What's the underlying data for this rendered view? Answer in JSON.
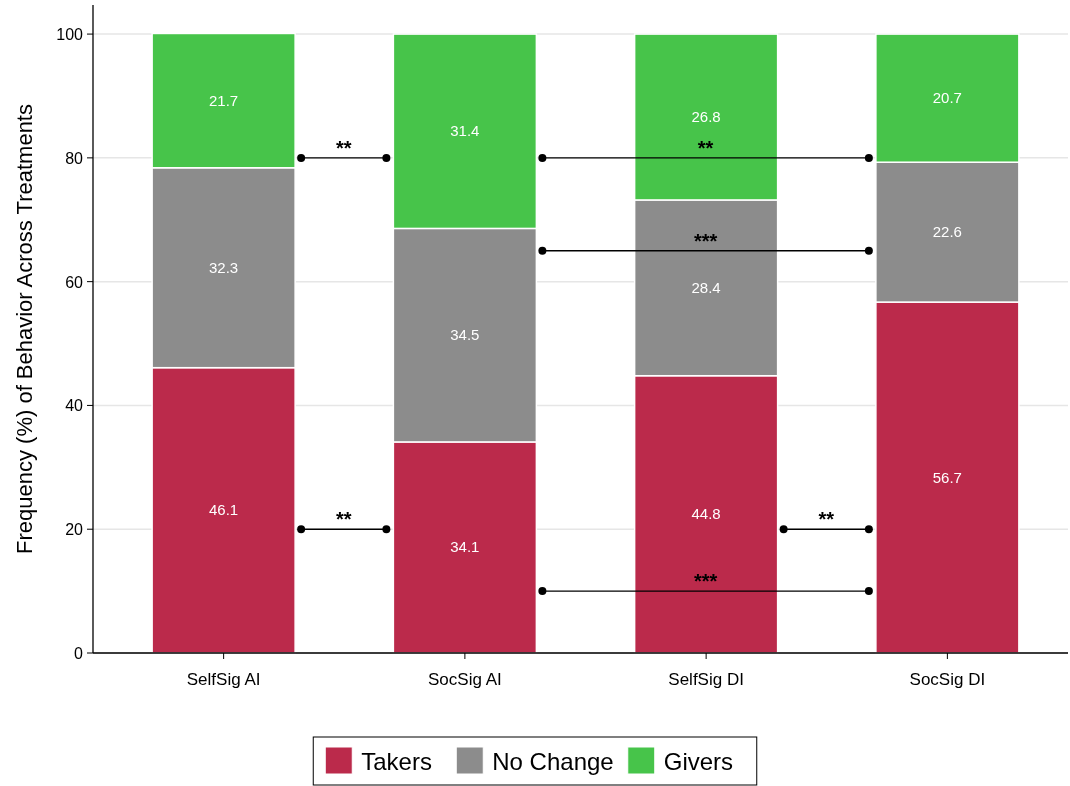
{
  "chart_data": {
    "type": "bar",
    "stacked": true,
    "ylabel": "Frequency (%) of Behavior Across Treatments",
    "categories": [
      "SelfSig AI",
      "SocSig AI",
      "SelfSig DI",
      "SocSig DI"
    ],
    "series": [
      {
        "name": "Takers",
        "color": "#bb2a4b",
        "values": [
          46.1,
          34.1,
          44.8,
          56.7
        ]
      },
      {
        "name": "No Change",
        "color": "#8c8c8c",
        "values": [
          32.3,
          34.5,
          28.4,
          22.6
        ]
      },
      {
        "name": "Givers",
        "color": "#47c44a",
        "values": [
          21.7,
          31.4,
          26.8,
          20.7
        ]
      }
    ],
    "ylim": [
      0,
      104.7
    ],
    "yticks": [
      0,
      20,
      40,
      60,
      80,
      100
    ],
    "grid": "y",
    "legend": "bottom",
    "data_labels": true,
    "annotations": [
      "**",
      "**",
      "***",
      "**",
      "**",
      "***"
    ]
  }
}
